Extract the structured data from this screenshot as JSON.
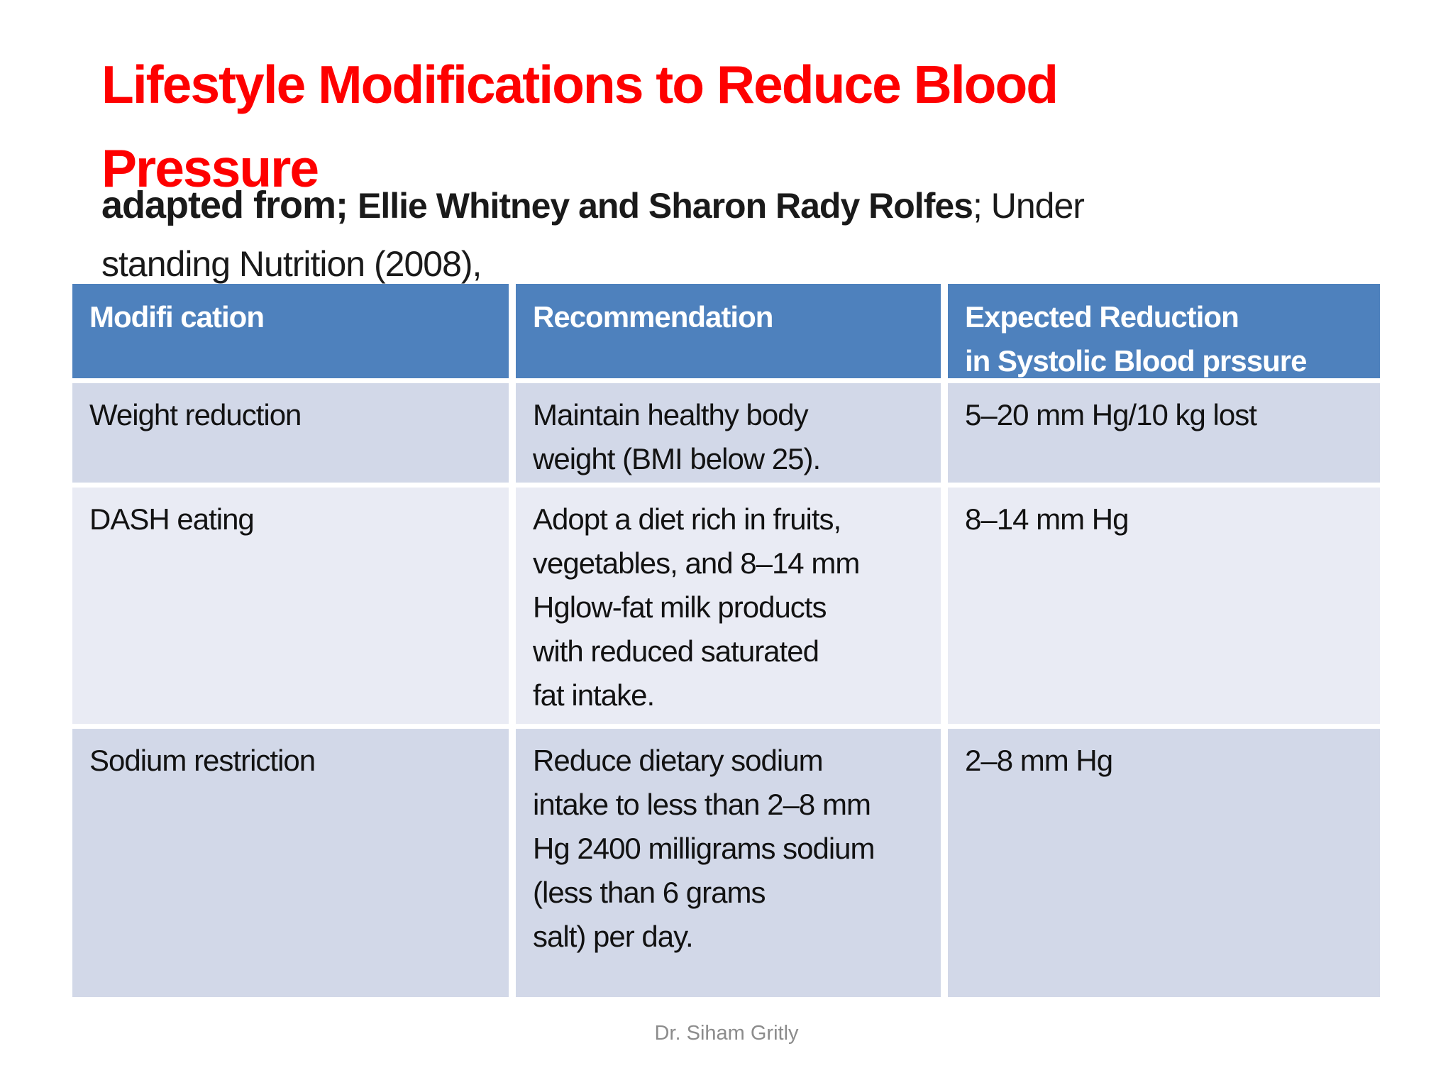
{
  "slide": {
    "title_line1": "Lifestyle Modifications to Reduce Blood",
    "title_line2": "Pressure",
    "subtitle": {
      "lead": "adapted from; ",
      "authors": "Ellie Whitney and Sharon Rady Rolfes",
      "tail_line1": "; Under",
      "tail_line2": "standing Nutrition (2008),"
    },
    "footer": "Dr. Siham Gritly",
    "colors": {
      "title_red": "#fe0000",
      "header_blue": "#4e81bd",
      "row_band_dark": "#d2d8e8",
      "row_band_light": "#e9ebf4",
      "body_text": "#121212",
      "footer_gray": "#8c8c8c",
      "background": "#ffffff"
    }
  },
  "table": {
    "headers": {
      "modification": "Modifi cation",
      "recommendation": "Recommendation",
      "reduction": "Expected Reduction\nin Systolic Blood prssure"
    },
    "rows": [
      {
        "modification": "Weight reduction",
        "recommendation": "Maintain healthy body\nweight (BMI below 25).",
        "reduction": "5–20 mm Hg/10 kg lost"
      },
      {
        "modification": "DASH eating",
        "recommendation": "Adopt a diet rich in fruits,\nvegetables, and 8–14 mm\nHglow-fat milk products\nwith reduced saturated\nfat intake.",
        "reduction": "8–14 mm Hg"
      },
      {
        "modification": "Sodium restriction",
        "recommendation": "Reduce dietary sodium\nintake to less than 2–8 mm\nHg 2400 milligrams sodium\n(less than 6 grams\nsalt) per day.",
        "reduction": "2–8 mm Hg"
      }
    ]
  }
}
